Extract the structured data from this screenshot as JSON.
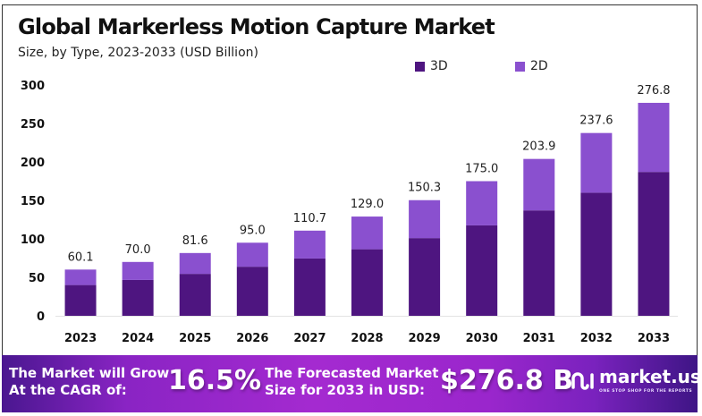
{
  "chart_data": {
    "type": "bar",
    "stacked": true,
    "title": "Global Markerless Motion Capture Market",
    "subtitle": "Size, by Type, 2023-2033 (USD Billion)",
    "xlabel": "",
    "ylabel": "",
    "categories": [
      "2023",
      "2024",
      "2025",
      "2026",
      "2027",
      "2028",
      "2029",
      "2030",
      "2031",
      "2032",
      "2033"
    ],
    "series": [
      {
        "name": "3D",
        "color": "#4e1580",
        "values": [
          40.0,
          46.6,
          54.5,
          63.8,
          74.5,
          86.5,
          101.0,
          117.5,
          137.0,
          160.0,
          187.0
        ]
      },
      {
        "name": "2D",
        "color": "#8a50cf",
        "values": [
          20.1,
          23.4,
          27.1,
          31.2,
          36.2,
          42.5,
          49.3,
          57.5,
          66.9,
          77.6,
          89.8
        ]
      }
    ],
    "totals": [
      60.1,
      70.0,
      81.6,
      95.0,
      110.7,
      129.0,
      150.3,
      175.0,
      203.9,
      237.6,
      276.8
    ],
    "total_labels": [
      "60.1",
      "70.0",
      "81.6",
      "95.0",
      "110.7",
      "129.0",
      "150.3",
      "175.0",
      "203.9",
      "237.6",
      "276.8"
    ],
    "yticks": [
      0,
      50,
      100,
      150,
      200,
      250,
      300
    ],
    "ylim": [
      0,
      300
    ],
    "grid": false,
    "legend_position": "top-right"
  },
  "banner": {
    "cagr_text_line1": "The Market will Grow",
    "cagr_text_line2": "At the CAGR of:",
    "cagr_value": "16.5%",
    "forecast_text_line1": "The Forecasted Market",
    "forecast_text_line2": "Size for 2033 in USD:",
    "forecast_value": "$276.8 B",
    "logo_icon": "market-us-logo-icon",
    "logo_name": "market.us",
    "logo_tagline": "ONE STOP SHOP FOR THE REPORTS"
  }
}
